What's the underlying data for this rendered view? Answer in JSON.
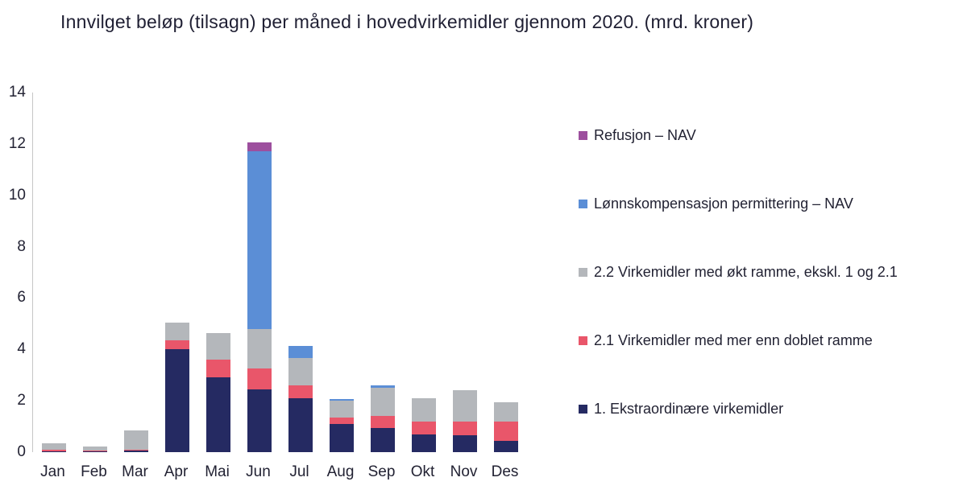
{
  "title": "Innvilget beløp (tilsagn) per måned i hovedvirkemidler gjennom 2020. (mrd. kroner)",
  "chart_data": {
    "type": "bar",
    "stacked": true,
    "title": "Innvilget beløp (tilsagn) per måned i hovedvirkemidler gjennom 2020. (mrd. kroner)",
    "categories": [
      "Jan",
      "Feb",
      "Mar",
      "Apr",
      "Mai",
      "Jun",
      "Jul",
      "Aug",
      "Sep",
      "Okt",
      "Nov",
      "Des"
    ],
    "series": [
      {
        "name": "1. Ekstraordinære virkemidler",
        "color": "#252a62",
        "values": [
          0.03,
          0.02,
          0.05,
          4.0,
          2.9,
          2.45,
          2.1,
          1.1,
          0.95,
          0.7,
          0.65,
          0.45
        ]
      },
      {
        "name": "2.1 Virkemidler med mer enn doblet ramme",
        "color": "#e9566a",
        "values": [
          0.05,
          0.04,
          0.05,
          0.35,
          0.7,
          0.8,
          0.5,
          0.25,
          0.45,
          0.5,
          0.55,
          0.75
        ]
      },
      {
        "name": "2.2 Virkemidler med økt ramme, ekskl. 1 og 2.1",
        "color": "#b4b7bb",
        "values": [
          0.27,
          0.16,
          0.75,
          0.7,
          1.05,
          1.55,
          1.05,
          0.65,
          1.1,
          0.9,
          1.2,
          0.75
        ]
      },
      {
        "name": "Lønnskompensasjon permittering – NAV",
        "color": "#5b8ed6",
        "values": [
          0,
          0,
          0,
          0,
          0,
          6.9,
          0.5,
          0.07,
          0.1,
          0,
          0,
          0
        ]
      },
      {
        "name": "Refusjon – NAV",
        "color": "#9d4f9e",
        "values": [
          0,
          0,
          0,
          0,
          0,
          0.35,
          0,
          0,
          0,
          0,
          0,
          0
        ]
      }
    ],
    "ylabel": "",
    "xlabel": "",
    "ylim": [
      0,
      14
    ],
    "yticks": [
      0,
      2,
      4,
      6,
      8,
      10,
      12,
      14
    ],
    "grid": false,
    "legend_position": "right",
    "legend_order_top_to_bottom": [
      "Refusjon – NAV",
      "Lønnskompensasjon permittering – NAV",
      "2.2 Virkemidler med økt ramme, ekskl. 1 og 2.1",
      "2.1 Virkemidler med mer enn doblet ramme",
      "1. Ekstraordinære virkemidler"
    ]
  }
}
